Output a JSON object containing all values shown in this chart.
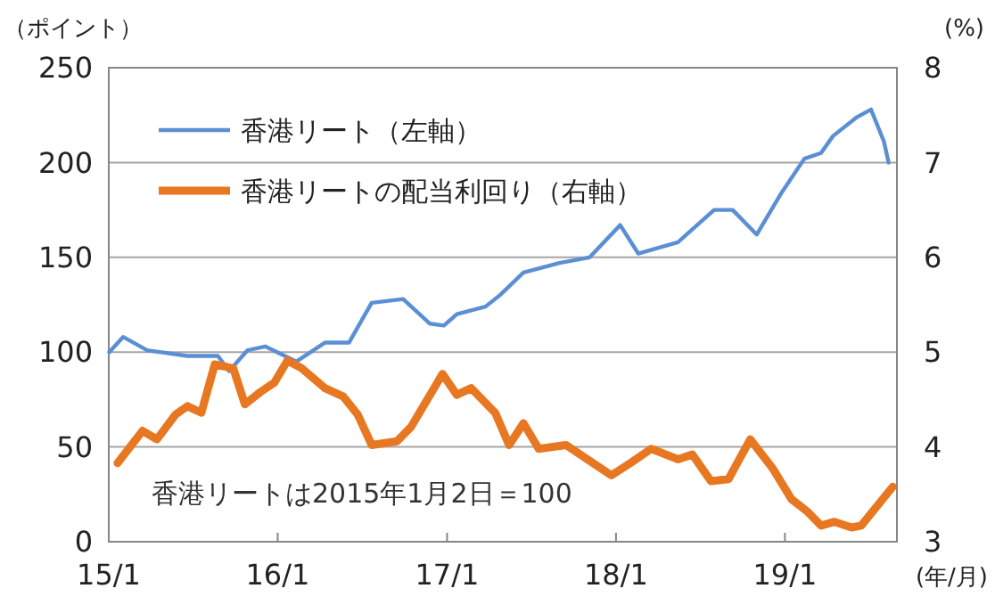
{
  "chart_data": {
    "type": "line",
    "ylabel": "（ポイント）",
    "y2label": "(%)",
    "xlabel": "(年/月)",
    "annotations": [
      "香港リートは2015年1月2日＝100"
    ],
    "xlim": [
      "2015-01-01",
      "2019-08-31"
    ],
    "xticks": [
      {
        "value": "2015-01-01",
        "label": "15/1"
      },
      {
        "value": "2016-01-01",
        "label": "16/1"
      },
      {
        "value": "2017-01-01",
        "label": "17/1"
      },
      {
        "value": "2018-01-01",
        "label": "18/1"
      },
      {
        "value": "2019-01-01",
        "label": "19/1"
      }
    ],
    "ylim": [
      0,
      250
    ],
    "yticks": [
      0,
      50,
      100,
      150,
      200,
      250
    ],
    "y2lim": [
      3,
      8
    ],
    "y2ticks": [
      3,
      4,
      5,
      6,
      7,
      8
    ],
    "grid": "y",
    "legend": "top left",
    "series": [
      {
        "name": "香港リート（左軸）",
        "color": "#5b8fd4",
        "axis": "y",
        "x": [
          "2015-01-02",
          "2015-02-01",
          "2015-03-25",
          "2015-06-20",
          "2015-08-25",
          "2015-09-18",
          "2015-10-28",
          "2015-12-05",
          "2016-02-10",
          "2016-04-12",
          "2016-06-03",
          "2016-07-22",
          "2016-09-28",
          "2016-11-25",
          "2016-12-25",
          "2017-01-22",
          "2017-03-25",
          "2017-04-25",
          "2017-06-15",
          "2017-09-01",
          "2017-11-05",
          "2018-01-10",
          "2018-02-18",
          "2018-05-15",
          "2018-08-01",
          "2018-09-10",
          "2018-11-01",
          "2018-12-22",
          "2019-02-12",
          "2019-03-20",
          "2019-04-15",
          "2019-06-06",
          "2019-07-06",
          "2019-08-03",
          "2019-08-13"
        ],
        "values": [
          100,
          108,
          101,
          98,
          98,
          90,
          101,
          103,
          95,
          105,
          105,
          126,
          128,
          115,
          114,
          120,
          124,
          130,
          142,
          147,
          150,
          167,
          152,
          158,
          175,
          175,
          162,
          183,
          202,
          205,
          214,
          224,
          228,
          211,
          200
        ]
      },
      {
        "name": "香港リートの配当利回り（右軸）",
        "color": "#e87722",
        "axis": "y2",
        "x": [
          "2015-01-20",
          "2015-03-15",
          "2015-04-15",
          "2015-05-25",
          "2015-06-20",
          "2015-07-20",
          "2015-08-18",
          "2015-09-27",
          "2015-10-22",
          "2015-11-25",
          "2015-12-25",
          "2016-01-22",
          "2016-02-22",
          "2016-04-12",
          "2016-05-22",
          "2016-06-22",
          "2016-07-22",
          "2016-09-15",
          "2016-10-15",
          "2016-12-22",
          "2017-01-22",
          "2017-02-22",
          "2017-04-15",
          "2017-05-15",
          "2017-06-15",
          "2017-07-18",
          "2017-09-15",
          "2017-12-22",
          "2018-02-01",
          "2018-03-18",
          "2018-05-15",
          "2018-06-15",
          "2018-07-25",
          "2018-09-01",
          "2018-10-18",
          "2018-12-06",
          "2019-01-15",
          "2019-02-18",
          "2019-03-20",
          "2019-04-18",
          "2019-05-25",
          "2019-06-15",
          "2019-08-22"
        ],
        "values": [
          3.83,
          4.17,
          4.08,
          4.34,
          4.43,
          4.36,
          4.87,
          4.83,
          4.45,
          4.58,
          4.68,
          4.91,
          4.83,
          4.62,
          4.53,
          4.34,
          4.02,
          4.06,
          4.21,
          4.77,
          4.55,
          4.62,
          4.36,
          4.02,
          4.25,
          3.98,
          4.02,
          3.7,
          3.83,
          3.98,
          3.87,
          3.92,
          3.64,
          3.66,
          4.08,
          3.77,
          3.45,
          3.32,
          3.17,
          3.21,
          3.15,
          3.17,
          3.58
        ]
      }
    ]
  }
}
